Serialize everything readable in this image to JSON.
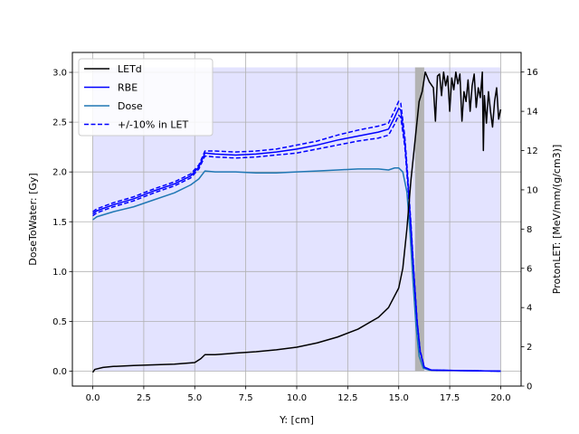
{
  "chart_data": {
    "type": "line",
    "title": "",
    "xlabel": "Y: [cm]",
    "ylabel": "DoseToWater: [Gy]",
    "y2label": "ProtonLET: [MeV/mm/(g/cm3)]",
    "xlim": [
      -1.0,
      21.0
    ],
    "ylim": [
      -0.15,
      3.2
    ],
    "y2lim": [
      0,
      17
    ],
    "xticks": [
      0.0,
      2.5,
      5.0,
      7.5,
      10.0,
      12.5,
      15.0,
      17.5,
      20.0
    ],
    "xtick_labels": [
      "0.0",
      "2.5",
      "5.0",
      "7.5",
      "10.0",
      "12.5",
      "15.0",
      "17.5",
      "20.0"
    ],
    "yticks": [
      0.0,
      0.5,
      1.0,
      1.5,
      2.0,
      2.5,
      3.0
    ],
    "ytick_labels": [
      "0.0",
      "0.5",
      "1.0",
      "1.5",
      "2.0",
      "2.5",
      "3.0"
    ],
    "y2ticks": [
      0,
      2,
      4,
      6,
      8,
      10,
      12,
      14,
      16
    ],
    "y2tick_labels": [
      "0",
      "2",
      "4",
      "6",
      "8",
      "10",
      "12",
      "14",
      "16"
    ],
    "grid": true,
    "legend_position": "top-left",
    "legend": [
      {
        "label": "LETd",
        "color": "#000000",
        "style": "solid"
      },
      {
        "label": "RBE",
        "color": "#0000ff",
        "style": "solid"
      },
      {
        "label": "Dose",
        "color": "#1f77b4",
        "style": "solid"
      },
      {
        "label": "+/-10% in LET",
        "color": "#0000ff",
        "style": "dashed"
      }
    ],
    "region_span": {
      "x": [
        0.0,
        20.0
      ],
      "y": [
        0.0,
        3.05
      ],
      "color": "#e3e3ff"
    },
    "gray_band": {
      "x": [
        15.8,
        16.25
      ],
      "y": [
        0.0,
        3.05
      ],
      "color": "#b3b3b3"
    },
    "series": [
      {
        "name": "Dose",
        "axis": "left",
        "color": "#1f77b4",
        "points": [
          [
            0.0,
            1.52
          ],
          [
            0.2,
            1.55
          ],
          [
            1.0,
            1.6
          ],
          [
            2.0,
            1.65
          ],
          [
            3.0,
            1.72
          ],
          [
            4.0,
            1.79
          ],
          [
            4.8,
            1.87
          ],
          [
            5.2,
            1.93
          ],
          [
            5.5,
            2.01
          ],
          [
            6.0,
            2.0
          ],
          [
            7.0,
            2.0
          ],
          [
            8.0,
            1.99
          ],
          [
            9.0,
            1.99
          ],
          [
            10.0,
            2.0
          ],
          [
            11.0,
            2.01
          ],
          [
            12.0,
            2.02
          ],
          [
            13.0,
            2.03
          ],
          [
            14.0,
            2.03
          ],
          [
            14.5,
            2.02
          ],
          [
            14.8,
            2.04
          ],
          [
            15.0,
            2.04
          ],
          [
            15.2,
            2.0
          ],
          [
            15.4,
            1.8
          ],
          [
            15.55,
            1.4
          ],
          [
            15.7,
            0.9
          ],
          [
            15.85,
            0.45
          ],
          [
            16.0,
            0.15
          ],
          [
            16.2,
            0.03
          ],
          [
            16.5,
            0.01
          ],
          [
            20.0,
            0.0
          ]
        ]
      },
      {
        "name": "RBE",
        "axis": "left",
        "color": "#0000ff",
        "points": [
          [
            0.0,
            1.58
          ],
          [
            0.2,
            1.61
          ],
          [
            1.0,
            1.67
          ],
          [
            2.0,
            1.73
          ],
          [
            3.0,
            1.81
          ],
          [
            4.0,
            1.88
          ],
          [
            4.8,
            1.96
          ],
          [
            5.2,
            2.05
          ],
          [
            5.5,
            2.19
          ],
          [
            6.0,
            2.18
          ],
          [
            7.0,
            2.17
          ],
          [
            8.0,
            2.18
          ],
          [
            9.0,
            2.2
          ],
          [
            10.0,
            2.23
          ],
          [
            11.0,
            2.27
          ],
          [
            12.0,
            2.32
          ],
          [
            13.0,
            2.36
          ],
          [
            14.0,
            2.4
          ],
          [
            14.5,
            2.43
          ],
          [
            14.8,
            2.55
          ],
          [
            15.0,
            2.64
          ],
          [
            15.1,
            2.62
          ],
          [
            15.3,
            2.3
          ],
          [
            15.45,
            1.9
          ],
          [
            15.6,
            1.45
          ],
          [
            15.75,
            0.95
          ],
          [
            15.9,
            0.5
          ],
          [
            16.05,
            0.2
          ],
          [
            16.25,
            0.04
          ],
          [
            16.6,
            0.01
          ],
          [
            20.0,
            0.0
          ]
        ]
      },
      {
        "name": "",
        "axis": "left",
        "color": "#0000ff",
        "style": "dashed",
        "points": [
          [
            0.0,
            1.56
          ],
          [
            0.2,
            1.59
          ],
          [
            1.0,
            1.65
          ],
          [
            2.0,
            1.71
          ],
          [
            3.0,
            1.79
          ],
          [
            4.0,
            1.86
          ],
          [
            4.8,
            1.94
          ],
          [
            5.2,
            2.03
          ],
          [
            5.5,
            2.16
          ],
          [
            6.0,
            2.15
          ],
          [
            7.0,
            2.14
          ],
          [
            8.0,
            2.15
          ],
          [
            9.0,
            2.17
          ],
          [
            10.0,
            2.19
          ],
          [
            11.0,
            2.23
          ],
          [
            12.0,
            2.27
          ],
          [
            13.0,
            2.31
          ],
          [
            14.0,
            2.34
          ],
          [
            14.5,
            2.37
          ],
          [
            14.8,
            2.48
          ],
          [
            15.0,
            2.57
          ],
          [
            15.1,
            2.55
          ],
          [
            15.3,
            2.25
          ],
          [
            15.45,
            1.86
          ],
          [
            15.6,
            1.42
          ],
          [
            15.75,
            0.93
          ],
          [
            15.9,
            0.49
          ],
          [
            16.05,
            0.19
          ],
          [
            16.25,
            0.04
          ],
          [
            16.6,
            0.01
          ],
          [
            20.0,
            0.0
          ]
        ]
      },
      {
        "name": "",
        "axis": "left",
        "color": "#0000ff",
        "style": "dashed",
        "points": [
          [
            0.0,
            1.6
          ],
          [
            0.2,
            1.63
          ],
          [
            1.0,
            1.69
          ],
          [
            2.0,
            1.75
          ],
          [
            3.0,
            1.83
          ],
          [
            4.0,
            1.9
          ],
          [
            4.8,
            1.98
          ],
          [
            5.2,
            2.07
          ],
          [
            5.5,
            2.21
          ],
          [
            6.0,
            2.21
          ],
          [
            7.0,
            2.2
          ],
          [
            8.0,
            2.21
          ],
          [
            9.0,
            2.23
          ],
          [
            10.0,
            2.27
          ],
          [
            11.0,
            2.31
          ],
          [
            12.0,
            2.37
          ],
          [
            13.0,
            2.42
          ],
          [
            14.0,
            2.46
          ],
          [
            14.5,
            2.49
          ],
          [
            14.8,
            2.62
          ],
          [
            15.0,
            2.71
          ],
          [
            15.1,
            2.69
          ],
          [
            15.3,
            2.35
          ],
          [
            15.45,
            1.94
          ],
          [
            15.6,
            1.48
          ],
          [
            15.75,
            0.97
          ],
          [
            15.9,
            0.51
          ],
          [
            16.05,
            0.21
          ],
          [
            16.25,
            0.04
          ],
          [
            16.6,
            0.01
          ],
          [
            20.0,
            0.0
          ]
        ]
      },
      {
        "name": "LETd",
        "axis": "right",
        "color": "#000000",
        "points": [
          [
            0.0,
            0.7
          ],
          [
            0.1,
            0.85
          ],
          [
            0.5,
            0.95
          ],
          [
            1.0,
            1.0
          ],
          [
            2.0,
            1.05
          ],
          [
            3.0,
            1.08
          ],
          [
            4.0,
            1.12
          ],
          [
            5.0,
            1.2
          ],
          [
            5.3,
            1.4
          ],
          [
            5.5,
            1.6
          ],
          [
            6.0,
            1.6
          ],
          [
            7.0,
            1.68
          ],
          [
            8.0,
            1.75
          ],
          [
            9.0,
            1.85
          ],
          [
            10.0,
            1.98
          ],
          [
            11.0,
            2.2
          ],
          [
            12.0,
            2.5
          ],
          [
            13.0,
            2.9
          ],
          [
            14.0,
            3.5
          ],
          [
            14.5,
            4.0
          ],
          [
            15.0,
            5.0
          ],
          [
            15.2,
            6.0
          ],
          [
            15.4,
            8.0
          ],
          [
            15.6,
            10.5
          ],
          [
            15.8,
            12.5
          ],
          [
            16.0,
            14.5
          ],
          [
            16.15,
            15.0
          ],
          [
            16.3,
            16.0
          ],
          [
            16.5,
            15.5
          ],
          [
            16.7,
            15.2
          ],
          [
            16.8,
            13.5
          ],
          [
            16.9,
            15.8
          ],
          [
            17.0,
            15.9
          ],
          [
            17.1,
            14.8
          ],
          [
            17.2,
            16.0
          ],
          [
            17.3,
            15.3
          ],
          [
            17.4,
            15.8
          ],
          [
            17.5,
            14.0
          ],
          [
            17.6,
            15.7
          ],
          [
            17.7,
            15.1
          ],
          [
            17.8,
            16.0
          ],
          [
            17.9,
            15.4
          ],
          [
            18.0,
            15.9
          ],
          [
            18.1,
            13.5
          ],
          [
            18.2,
            15.0
          ],
          [
            18.3,
            14.5
          ],
          [
            18.4,
            15.6
          ],
          [
            18.5,
            14.0
          ],
          [
            18.6,
            15.3
          ],
          [
            18.7,
            15.9
          ],
          [
            18.8,
            14.2
          ],
          [
            18.9,
            15.2
          ],
          [
            19.0,
            14.7
          ],
          [
            19.1,
            16.0
          ],
          [
            19.15,
            12.0
          ],
          [
            19.2,
            14.8
          ],
          [
            19.3,
            13.4
          ],
          [
            19.4,
            15.0
          ],
          [
            19.5,
            14.0
          ],
          [
            19.6,
            13.2
          ],
          [
            19.7,
            14.5
          ],
          [
            19.8,
            15.2
          ],
          [
            19.9,
            13.6
          ],
          [
            20.0,
            14.1
          ]
        ]
      }
    ]
  }
}
